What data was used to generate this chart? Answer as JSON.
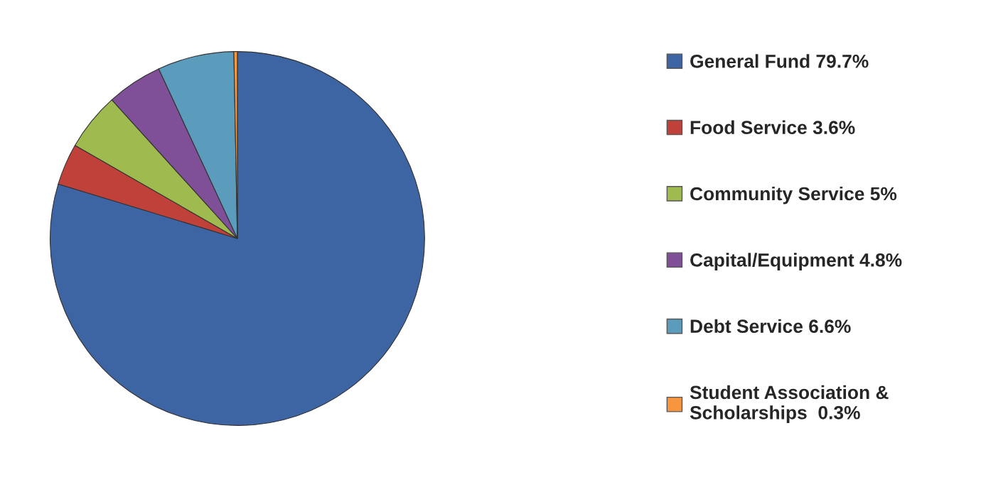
{
  "chart_data": {
    "type": "pie",
    "categories": [
      "General Fund 79.7%",
      "Food Service 3.6%",
      "Community Service 5%",
      "Capital/Equipment 4.8%",
      "Debt Service 6.6%",
      "Student Association &\nScholarships  0.3%"
    ],
    "values": [
      79.7,
      3.6,
      5,
      4.8,
      6.6,
      0.3
    ],
    "colors": [
      "#3d64a3",
      "#c0403a",
      "#9fbb4f",
      "#7f4f98",
      "#5b9bbb",
      "#f7963f"
    ],
    "legend": "right"
  }
}
